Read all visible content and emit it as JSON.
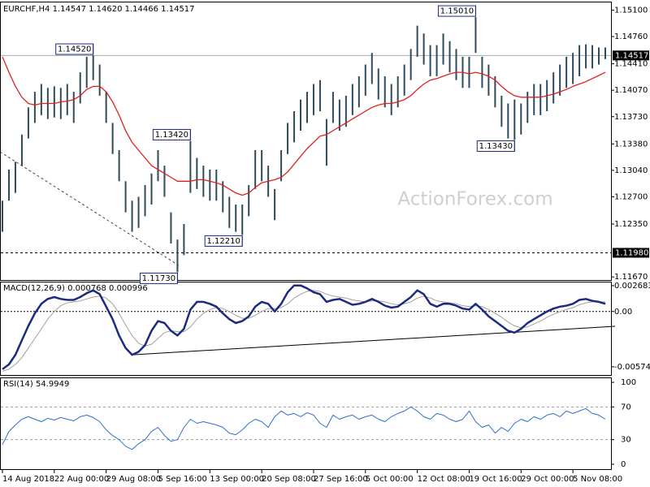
{
  "chart_data": {
    "type": "ohlc",
    "title": "EURCHF,H4 1.14547 1.14620 1.14466 1.14517",
    "watermark": "ActionForex.com",
    "categories": [
      "14 Aug 2018",
      null,
      null,
      null,
      null,
      null,
      null,
      null,
      "22 Aug 00:00",
      null,
      null,
      null,
      null,
      null,
      null,
      null,
      "29 Aug 08:00",
      null,
      null,
      null,
      null,
      null,
      null,
      null,
      "5 Sep 16:00",
      null,
      null,
      null,
      null,
      null,
      null,
      null,
      "13 Sep 00:00",
      null,
      null,
      null,
      null,
      null,
      null,
      null,
      "20 Sep 08:00",
      null,
      null,
      null,
      null,
      null,
      null,
      null,
      "27 Sep 16:00",
      null,
      null,
      null,
      null,
      null,
      null,
      null,
      "5 Oct 00:00",
      null,
      null,
      null,
      null,
      null,
      null,
      null,
      "12 Oct 08:00",
      null,
      null,
      null,
      null,
      null,
      null,
      null,
      "19 Oct 16:00",
      null,
      null,
      null,
      null,
      null,
      null,
      null,
      "29 Oct 00:00",
      null,
      null,
      null,
      null,
      null,
      null,
      null,
      "5 Nov 08:00",
      null,
      null,
      null,
      null,
      null
    ],
    "high": [
      1.1265,
      1.1305,
      1.1315,
      1.135,
      1.1385,
      1.1405,
      1.1415,
      1.141,
      1.1412,
      1.141,
      1.1415,
      1.1405,
      1.143,
      1.145,
      1.1452,
      1.144,
      1.1405,
      1.1365,
      1.133,
      1.129,
      1.1265,
      1.127,
      1.1285,
      1.13,
      1.133,
      1.131,
      1.125,
      1.1215,
      1.1235,
      1.1342,
      1.132,
      1.131,
      1.1305,
      1.1305,
      1.129,
      1.127,
      1.126,
      1.126,
      1.1285,
      1.133,
      1.133,
      1.131,
      1.128,
      1.133,
      1.1365,
      1.138,
      1.1395,
      1.1405,
      1.1415,
      1.142,
      1.137,
      1.1405,
      1.1395,
      1.14,
      1.1415,
      1.1425,
      1.144,
      1.1455,
      1.1435,
      1.1425,
      1.1415,
      1.1425,
      1.144,
      1.146,
      1.149,
      1.148,
      1.1465,
      1.1465,
      1.148,
      1.147,
      1.146,
      1.145,
      1.145,
      1.1501,
      1.145,
      1.144,
      1.1425,
      1.14,
      1.139,
      1.1395,
      1.139,
      1.1405,
      1.1415,
      1.1415,
      1.142,
      1.143,
      1.144,
      1.145,
      1.1455,
      1.1465,
      1.1466,
      1.1465,
      1.1462,
      1.1462
    ],
    "low": [
      1.1225,
      1.1265,
      1.1275,
      1.131,
      1.1345,
      1.1365,
      1.1375,
      1.137,
      1.1372,
      1.137,
      1.1375,
      1.1365,
      1.139,
      1.141,
      1.142,
      1.14,
      1.1365,
      1.1325,
      1.129,
      1.125,
      1.1225,
      1.123,
      1.1245,
      1.126,
      1.129,
      1.127,
      1.121,
      1.1173,
      1.1195,
      1.1275,
      1.128,
      1.127,
      1.1265,
      1.1265,
      1.125,
      1.123,
      1.1225,
      1.1221,
      1.1245,
      1.128,
      1.129,
      1.127,
      1.124,
      1.129,
      1.1325,
      1.134,
      1.1355,
      1.1365,
      1.1375,
      1.138,
      1.131,
      1.1365,
      1.1355,
      1.136,
      1.1375,
      1.1385,
      1.14,
      1.1415,
      1.1395,
      1.1385,
      1.1375,
      1.1385,
      1.14,
      1.142,
      1.145,
      1.144,
      1.1425,
      1.1425,
      1.144,
      1.143,
      1.142,
      1.141,
      1.141,
      1.1455,
      1.141,
      1.14,
      1.1385,
      1.136,
      1.1345,
      1.1343,
      1.135,
      1.1365,
      1.1375,
      1.1375,
      1.138,
      1.139,
      1.14,
      1.141,
      1.1415,
      1.1425,
      1.1435,
      1.1435,
      1.144,
      1.1447
    ],
    "color": "#2e4b5b",
    "ma": {
      "color": "#e02020",
      "values": [
        1.145,
        1.143,
        1.1412,
        1.1398,
        1.139,
        1.1388,
        1.139,
        1.139,
        1.139,
        1.1392,
        1.1393,
        1.1395,
        1.14,
        1.1408,
        1.1412,
        1.1412,
        1.1405,
        1.1392,
        1.1375,
        1.1355,
        1.134,
        1.133,
        1.132,
        1.131,
        1.1305,
        1.13,
        1.1295,
        1.129,
        1.129,
        1.129,
        1.1292,
        1.1292,
        1.129,
        1.1288,
        1.1285,
        1.128,
        1.1275,
        1.1272,
        1.1275,
        1.1282,
        1.1288,
        1.129,
        1.1292,
        1.1295,
        1.1302,
        1.1312,
        1.1322,
        1.1332,
        1.134,
        1.1348,
        1.135,
        1.1355,
        1.136,
        1.1365,
        1.137,
        1.1375,
        1.138,
        1.1385,
        1.1388,
        1.139,
        1.139,
        1.1392,
        1.1395,
        1.14,
        1.1408,
        1.1415,
        1.142,
        1.1422,
        1.1425,
        1.1428,
        1.143,
        1.143,
        1.1428,
        1.143,
        1.1428,
        1.1425,
        1.142,
        1.1412,
        1.1405,
        1.14,
        1.1398,
        1.1398,
        1.1398,
        1.1398,
        1.14,
        1.1402,
        1.1405,
        1.1408,
        1.1412,
        1.1415,
        1.1418,
        1.1422,
        1.1426,
        1.143
      ]
    },
    "ylim": [
      1.1163,
      1.1523
    ],
    "yticks": [
      {
        "value": 1.151,
        "label": "1.15100"
      },
      {
        "value": 1.1476,
        "label": "1.14760"
      },
      {
        "value": 1.1441,
        "label": "1.14410"
      },
      {
        "value": 1.1407,
        "label": "1.14070"
      },
      {
        "value": 1.1373,
        "label": "1.13730"
      },
      {
        "value": 1.1338,
        "label": "1.13380"
      },
      {
        "value": 1.1304,
        "label": "1.13040"
      },
      {
        "value": 1.127,
        "label": "1.12700"
      },
      {
        "value": 1.1235,
        "label": "1.12350"
      },
      {
        "value": 1.1167,
        "label": "1.11670"
      }
    ],
    "last_price": {
      "value": 1.14517,
      "label": "1.14517"
    },
    "levels": [
      {
        "value": 1.1198,
        "label": "1.11980"
      }
    ],
    "annotations": [
      {
        "label": "1.14520",
        "value": 1.1452,
        "at": "high"
      },
      {
        "label": "1.15010",
        "value": 1.1501,
        "at": "high"
      },
      {
        "label": "1.13420",
        "value": 1.1342,
        "at": "high"
      },
      {
        "label": "1.13430",
        "value": 1.1343,
        "at": "low"
      },
      {
        "label": "1.12210",
        "value": 1.1221,
        "at": "low"
      },
      {
        "label": "1.11730",
        "value": 1.1173,
        "at": "low"
      }
    ],
    "macd": {
      "title": "MACD(12,26,9) 0.000768 0.000996",
      "ylim": [
        -0.0066,
        0.0031
      ],
      "yticks": [
        0.002683,
        {
          "value": 0,
          "label": "0.00"
        },
        -0.005748
      ],
      "series": [
        {
          "color": "#1c2a80",
          "values": [
            -0.006,
            -0.0055,
            -0.0045,
            -0.003,
            -0.0015,
            -0.0002,
            0.0008,
            0.0013,
            0.0015,
            0.0013,
            0.0012,
            0.0012,
            0.0015,
            0.0019,
            0.0022,
            0.0018,
            0.0005,
            -0.0008,
            -0.0025,
            -0.0038,
            -0.0045,
            -0.0042,
            -0.0035,
            -0.002,
            -0.001,
            -0.0012,
            -0.002,
            -0.0025,
            -0.0018,
            0.0002,
            0.001,
            0.001,
            0.0008,
            0.0005,
            -0.0002,
            -0.0008,
            -0.0012,
            -0.001,
            -0.0005,
            0.0005,
            0.001,
            0.0008,
            0,
            0.0008,
            0.002,
            0.0027,
            0.0027,
            0.0024,
            0.002,
            0.0018,
            0.001,
            0.0012,
            0.0013,
            0.001,
            0.0007,
            0.0008,
            0.001,
            0.0013,
            0.001,
            0.0006,
            0.0004,
            0.0005,
            0.001,
            0.0015,
            0.0022,
            0.0018,
            0.0008,
            0.0005,
            0.0008,
            0.0008,
            0.0006,
            0.0003,
            0.0002,
            0.0008,
            0.0002,
            -0.0005,
            -0.001,
            -0.0015,
            -0.002,
            -0.0022,
            -0.0018,
            -0.0012,
            -0.0008,
            -0.0004,
            0,
            0.0003,
            0.0005,
            0.0006,
            0.0008,
            0.0012,
            0.0013,
            0.0011,
            0.001,
            0.0008
          ]
        },
        {
          "color": "#a0a0a0",
          "values": [
            -0.0062,
            -0.006,
            -0.0055,
            -0.0048,
            -0.0038,
            -0.0028,
            -0.0018,
            -0.0008,
            0,
            0.0006,
            0.0009,
            0.001,
            0.0011,
            0.0013,
            0.0015,
            0.0016,
            0.0014,
            0.0008,
            -0.0002,
            -0.0014,
            -0.0025,
            -0.0033,
            -0.0036,
            -0.0034,
            -0.0028,
            -0.0022,
            -0.002,
            -0.0021,
            -0.0021,
            -0.0016,
            -0.0008,
            -0.0002,
            0.0002,
            0.0004,
            0.0003,
            0,
            -0.0004,
            -0.0007,
            -0.0007,
            -0.0004,
            0,
            0.0003,
            0.0003,
            0.0004,
            0.0008,
            0.0014,
            0.0018,
            0.0021,
            0.0022,
            0.0021,
            0.0018,
            0.0016,
            0.0015,
            0.0014,
            0.0012,
            0.0011,
            0.001,
            0.0011,
            0.0011,
            0.001,
            0.0008,
            0.0007,
            0.0008,
            0.001,
            0.0014,
            0.0016,
            0.0014,
            0.0011,
            0.001,
            0.0009,
            0.0008,
            0.0006,
            0.0005,
            0.0006,
            0.0005,
            0.0002,
            -0.0002,
            -0.0006,
            -0.0011,
            -0.0015,
            -0.0017,
            -0.0016,
            -0.0013,
            -0.001,
            -0.0006,
            -0.0003,
            0,
            0.0002,
            0.0004,
            0.0007,
            0.0009,
            0.001,
            0.001,
            0.001
          ]
        }
      ]
    },
    "rsi": {
      "title": "RSI(14) 54.9949",
      "ylim": [
        -6,
        106
      ],
      "yticks": [
        100,
        70,
        30,
        0
      ],
      "color": "#2f6fd0",
      "values": [
        24,
        40,
        48,
        55,
        58,
        55,
        52,
        56,
        54,
        57,
        55,
        53,
        58,
        60,
        57,
        52,
        42,
        35,
        30,
        22,
        18,
        25,
        30,
        40,
        45,
        35,
        28,
        30,
        45,
        55,
        50,
        52,
        50,
        48,
        45,
        38,
        36,
        42,
        50,
        55,
        52,
        45,
        58,
        65,
        60,
        62,
        58,
        63,
        60,
        50,
        45,
        60,
        55,
        58,
        60,
        55,
        58,
        60,
        55,
        52,
        58,
        62,
        65,
        70,
        65,
        58,
        55,
        62,
        60,
        55,
        52,
        55,
        65,
        52,
        45,
        48,
        38,
        45,
        40,
        50,
        55,
        52,
        58,
        55,
        60,
        62,
        58,
        65,
        62,
        65,
        68,
        62,
        60,
        55
      ]
    }
  }
}
